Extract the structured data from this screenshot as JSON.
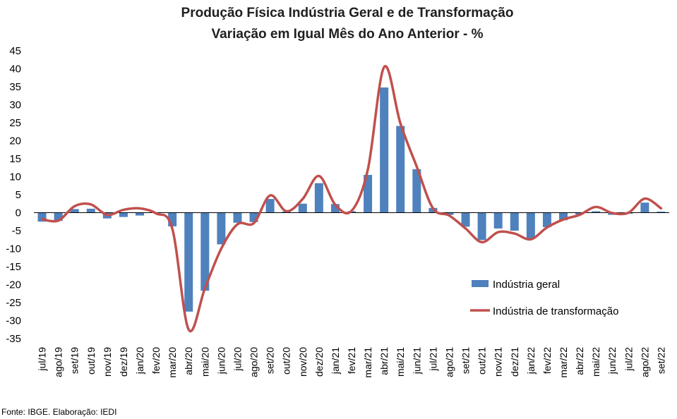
{
  "chart_data": {
    "type": "bar",
    "title": "Produção Física Indústria Geral e de Transformação",
    "subtitle": "Variação em Igual Mês do Ano Anterior - %",
    "xlabel": "",
    "ylabel": "",
    "ylim": [
      -35,
      45
    ],
    "yticks": [
      45,
      40,
      35,
      30,
      25,
      20,
      15,
      10,
      5,
      0,
      -5,
      -10,
      -15,
      -20,
      -25,
      -30,
      -35
    ],
    "categories": [
      "jul/19",
      "ago/19",
      "set/19",
      "out/19",
      "nov/19",
      "dez/19",
      "jan/20",
      "fev/20",
      "mar/20",
      "abr/20",
      "mai/20",
      "jun/20",
      "jul/20",
      "ago/20",
      "set/20",
      "out/20",
      "nov/20",
      "dez/20",
      "jan/21",
      "fev/21",
      "mar/21",
      "abr/21",
      "mai/21",
      "jun/21",
      "jul/21",
      "ago/21",
      "set/21",
      "out/21",
      "nov/21",
      "dez/21",
      "jan/22",
      "fev/22",
      "mar/22",
      "abr/22",
      "mai/22",
      "jun/22",
      "jul/22",
      "ago/22",
      "set/22"
    ],
    "series": [
      {
        "name": "Indústria geral",
        "type": "bar",
        "color": "#4f81bd",
        "values": [
          -2.5,
          -2.3,
          1.0,
          1.1,
          -1.6,
          -1.2,
          -0.8,
          0.0,
          -3.8,
          -27.5,
          -21.7,
          -8.8,
          -2.8,
          -2.6,
          3.8,
          0.3,
          2.5,
          8.2,
          2.4,
          0.4,
          10.5,
          34.8,
          24.1,
          12.1,
          1.3,
          -0.6,
          -3.9,
          -7.6,
          -4.4,
          -5.0,
          -7.2,
          -4.0,
          -2.1,
          -0.5,
          0.4,
          -0.6,
          -0.3,
          2.8,
          0.3
        ]
      },
      {
        "name": "Indústria de transformação",
        "type": "line",
        "color": "#c0504d",
        "values": [
          -1.8,
          -2.2,
          1.8,
          2.3,
          -0.6,
          0.8,
          1.2,
          -0.2,
          -4.5,
          -32.5,
          -21.0,
          -10.0,
          -3.2,
          -2.9,
          4.8,
          0.4,
          3.8,
          10.2,
          2.2,
          0.5,
          12.0,
          40.5,
          24.8,
          12.8,
          1.2,
          -0.8,
          -4.4,
          -8.2,
          -5.4,
          -5.8,
          -7.4,
          -4.1,
          -1.9,
          -0.6,
          1.6,
          -0.1,
          0.0,
          3.9,
          1.2
        ]
      }
    ],
    "legend_position": "right",
    "grid": false
  },
  "source_note": "Fonte: IBGE. Elaboração: IEDI"
}
